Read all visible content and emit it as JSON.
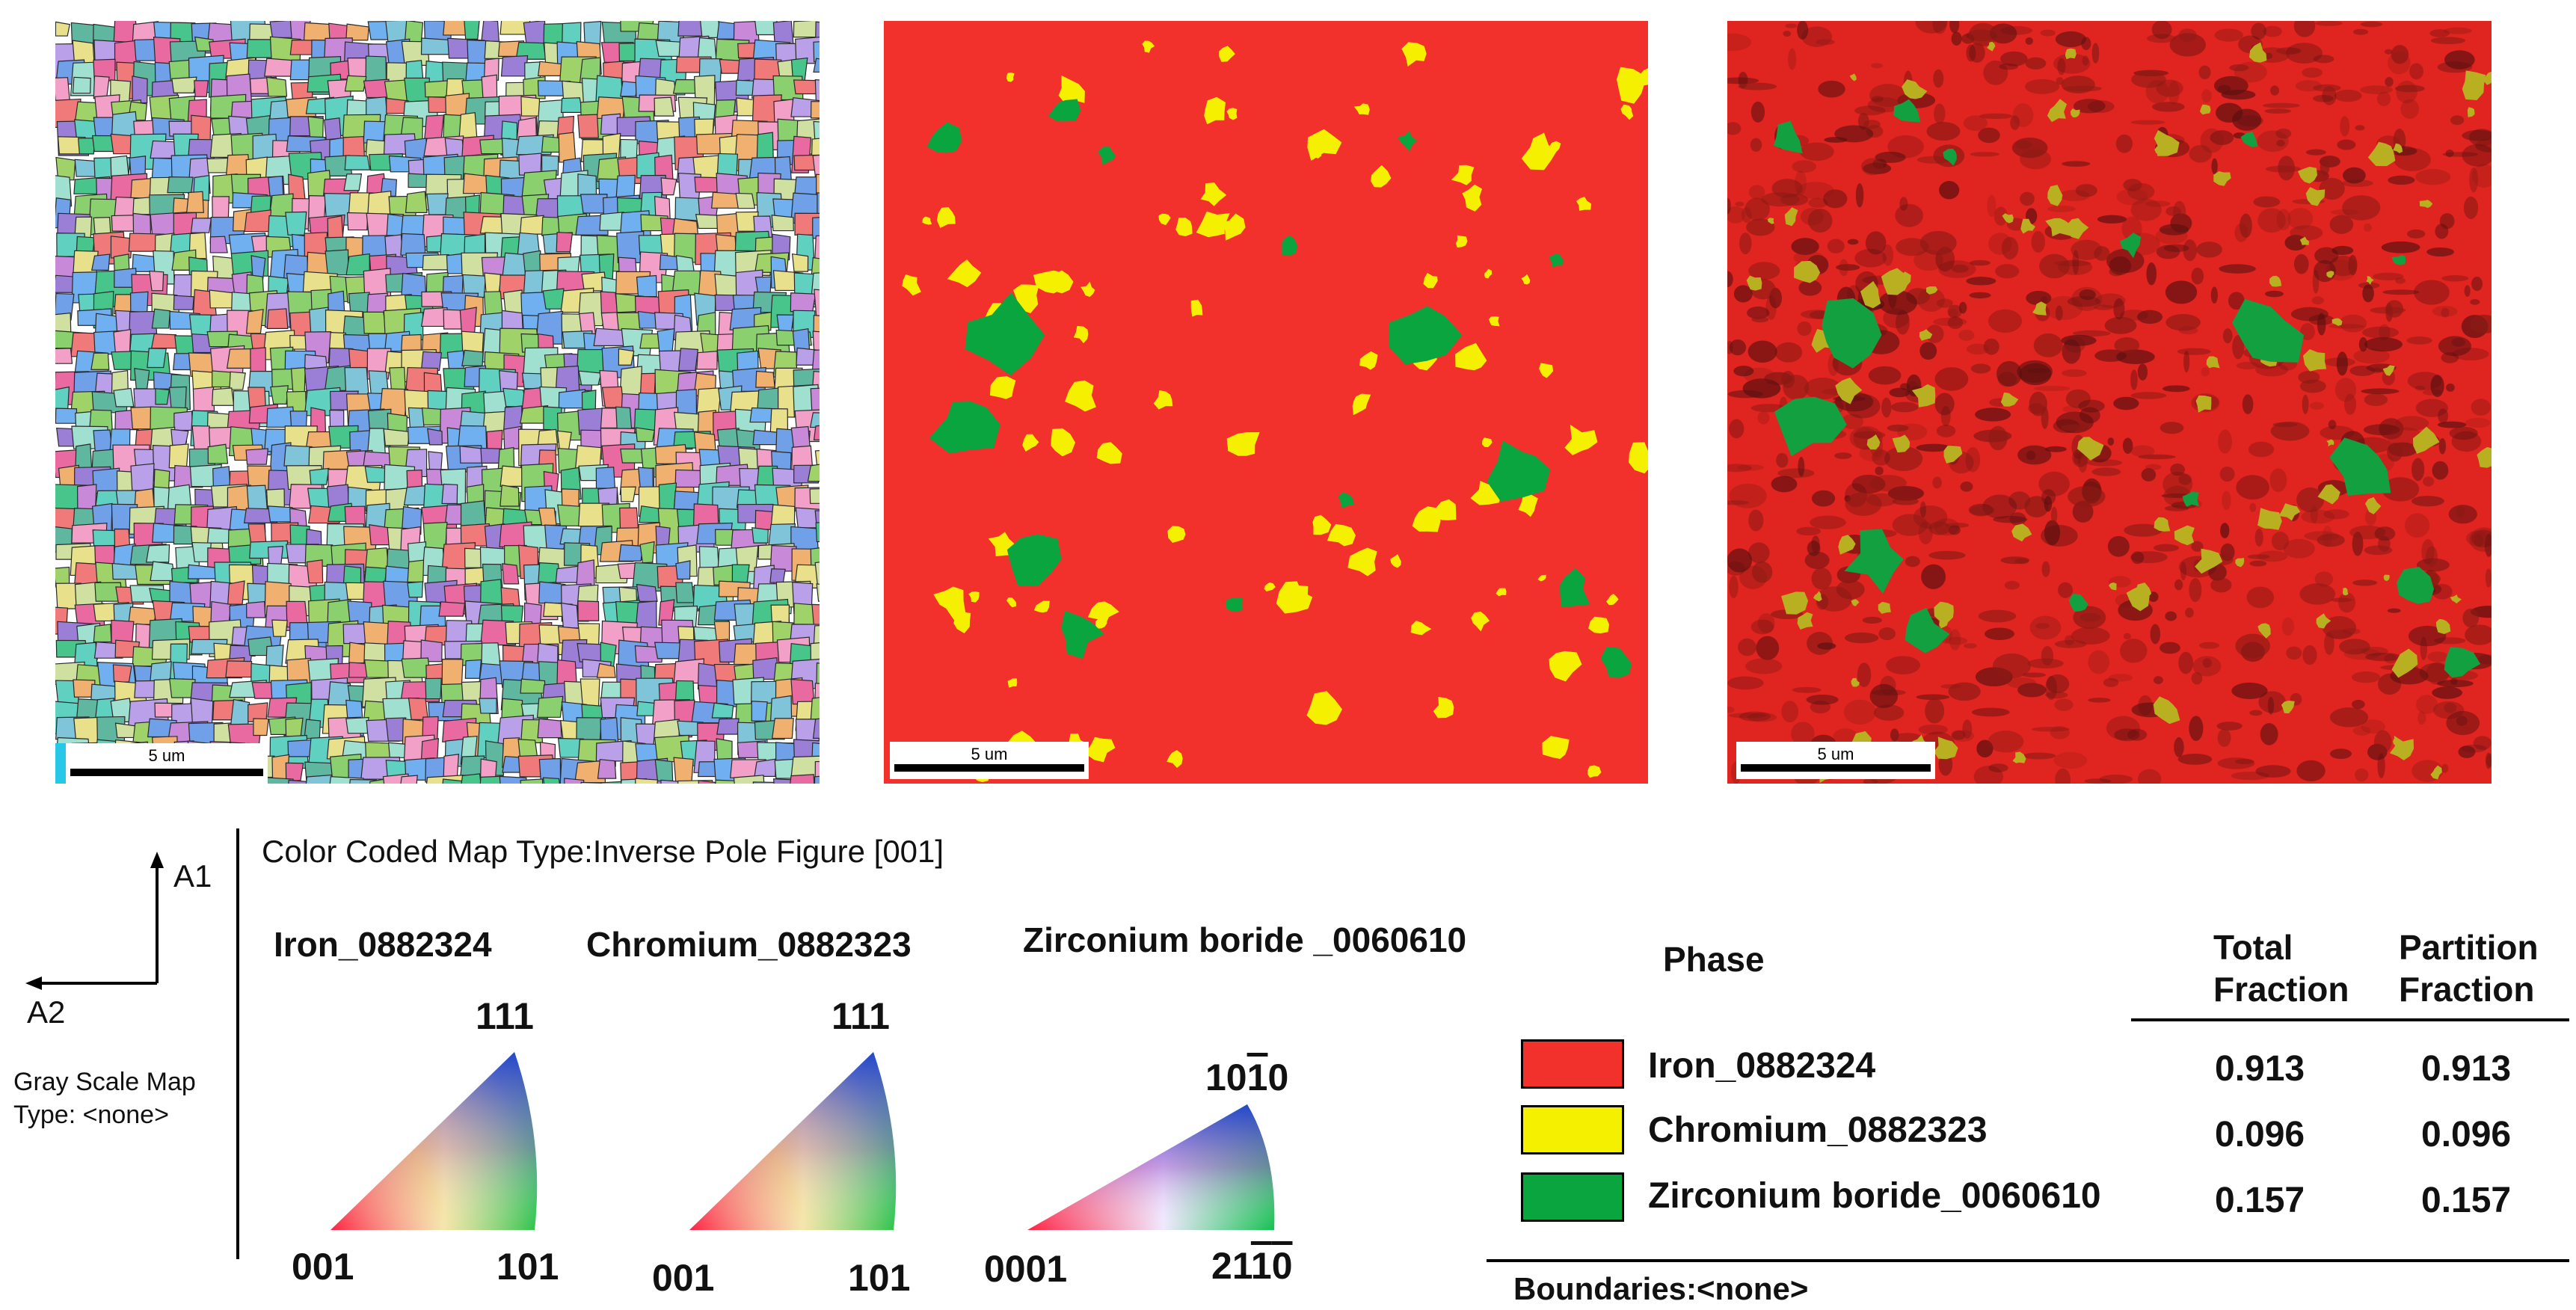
{
  "maps": {
    "scale_label": "5 um",
    "colors": {
      "iron": "#f2302c",
      "chromium": "#f5f000",
      "zirconium_boride": "#0aa53f"
    }
  },
  "legend": {
    "color_map_type": "Color Coded Map Type:Inverse Pole Figure [001]",
    "axis_a1": "A1",
    "axis_a2": "A2",
    "gray_scale_line1": "Gray Scale Map",
    "gray_scale_line2": "Type: <none>",
    "ipf": [
      {
        "phase": "Iron_0882324",
        "top": "111",
        "left": "001",
        "right": "101"
      },
      {
        "phase": "Chromium_0882323",
        "top": "111",
        "left": "001",
        "right": "101"
      },
      {
        "phase": "Zirconium boride _0060610",
        "top_main": "10",
        "top_bar": "1",
        "top_end": "0",
        "left": "0001",
        "right_bar1": "2",
        "right_bar2": "1",
        "right_end1": "1",
        "right_end2": "0"
      }
    ]
  },
  "phase_table": {
    "headers": {
      "phase": "Phase",
      "total_line1": "Total",
      "total_line2": "Fraction",
      "partition_line1": "Partition",
      "partition_line2": "Fraction"
    },
    "rows": [
      {
        "name": "Iron_0882324",
        "total": "0.913",
        "partition": "0.913",
        "color": "#f2302c"
      },
      {
        "name": "Chromium_0882323",
        "total": "0.096",
        "partition": "0.096",
        "color": "#f5f000"
      },
      {
        "name": "Zirconium boride_0060610",
        "total": "0.157",
        "partition": "0.157",
        "color": "#0aa53f"
      }
    ],
    "boundaries": "Boundaries:<none>"
  }
}
